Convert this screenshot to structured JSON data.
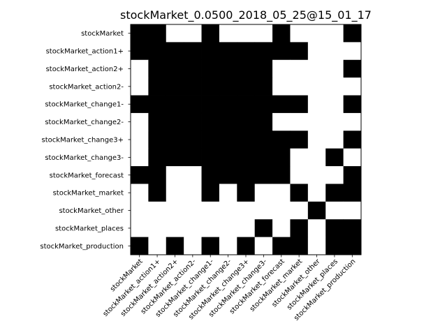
{
  "chart_data": {
    "type": "heatmap",
    "title": "stockMarket_0.0500_2018_05_25@15_01_17",
    "xlabel": "",
    "ylabel": "",
    "colormap": "binary",
    "values_meaning": "1 = black cell, 0 = white cell",
    "grid": false,
    "labels": [
      "stockMarket",
      "stockMarket_action1+",
      "stockMarket_action2+",
      "stockMarket_action2-",
      "stockMarket_change1-",
      "stockMarket_change2-",
      "stockMarket_change3+",
      "stockMarket_change3-",
      "stockMarket_forecast",
      "stockMarket_market",
      "stockMarket_other",
      "stockMarket_places",
      "stockMarket_production"
    ],
    "matrix": [
      [
        1,
        1,
        0,
        0,
        1,
        0,
        0,
        0,
        1,
        0,
        0,
        0,
        1
      ],
      [
        1,
        1,
        1,
        1,
        1,
        1,
        1,
        1,
        1,
        1,
        0,
        0,
        0
      ],
      [
        0,
        1,
        1,
        1,
        1,
        1,
        1,
        1,
        0,
        0,
        0,
        0,
        1
      ],
      [
        0,
        1,
        1,
        1,
        1,
        1,
        1,
        1,
        0,
        0,
        0,
        0,
        0
      ],
      [
        1,
        1,
        1,
        1,
        1,
        1,
        1,
        1,
        1,
        1,
        0,
        0,
        1
      ],
      [
        0,
        1,
        1,
        1,
        1,
        1,
        1,
        1,
        0,
        0,
        0,
        0,
        0
      ],
      [
        0,
        1,
        1,
        1,
        1,
        1,
        1,
        1,
        1,
        1,
        0,
        0,
        1
      ],
      [
        0,
        1,
        1,
        1,
        1,
        1,
        1,
        1,
        1,
        0,
        0,
        1,
        0
      ],
      [
        1,
        1,
        0,
        0,
        1,
        1,
        1,
        1,
        1,
        0,
        0,
        0,
        1
      ],
      [
        0,
        1,
        0,
        0,
        1,
        0,
        1,
        0,
        0,
        1,
        0,
        1,
        1
      ],
      [
        0,
        0,
        0,
        0,
        0,
        0,
        0,
        0,
        0,
        0,
        1,
        0,
        0
      ],
      [
        0,
        0,
        0,
        0,
        0,
        0,
        0,
        1,
        0,
        1,
        0,
        1,
        1
      ],
      [
        1,
        0,
        1,
        0,
        1,
        0,
        1,
        0,
        1,
        1,
        0,
        1,
        1
      ]
    ],
    "colors": {
      "on": "#000000",
      "off": "#ffffff",
      "frame": "#000000"
    }
  }
}
